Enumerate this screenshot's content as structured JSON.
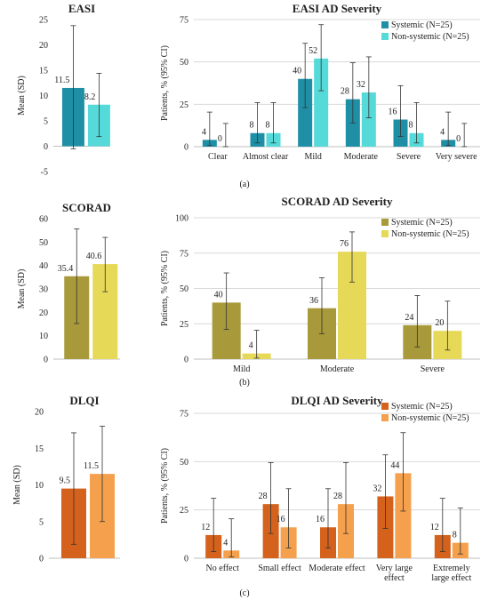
{
  "panel_labels": [
    "(a)",
    "(b)",
    "(c)"
  ],
  "colors": {
    "easi_systemic": "#1f8fa6",
    "easi_nonsystemic": "#56d9d9",
    "scorad_systemic": "#a89a3a",
    "scorad_nonsystemic": "#e6d957",
    "dlqi_systemic": "#d4621c",
    "dlqi_nonsystemic": "#f5a04d",
    "error_bar": "#333333",
    "gridline": "#d9d9d9"
  },
  "chart_data": [
    {
      "id": "easi-mean",
      "type": "bar",
      "title": "EASI",
      "ylabel": "Mean (SD)",
      "ylim": [
        -5,
        25
      ],
      "yticks": [
        -5,
        0,
        5,
        10,
        15,
        20,
        25
      ],
      "grid": false,
      "series": [
        {
          "values": [
            11.5
          ],
          "err_low": [
            -0.5
          ],
          "err_high": [
            23.8
          ],
          "color_key": "easi_systemic"
        },
        {
          "values": [
            8.2
          ],
          "err_low": [
            1.9
          ],
          "err_high": [
            14.4
          ],
          "color_key": "easi_nonsystemic"
        }
      ]
    },
    {
      "id": "easi-severity",
      "type": "bar",
      "title": "EASI AD Severity",
      "ylabel": "Patients, % (95% CI)",
      "ylim": [
        0,
        75
      ],
      "yticks": [
        0,
        25,
        50,
        75
      ],
      "grid": true,
      "legend": "top-right",
      "categories": [
        [
          "Clear"
        ],
        [
          "Almost clear"
        ],
        [
          "Mild"
        ],
        [
          "Moderate"
        ],
        [
          "Severe"
        ],
        [
          "Very severe"
        ]
      ],
      "series": [
        {
          "name": "Systemic (N=25)",
          "color_key": "easi_systemic",
          "values": [
            4,
            8,
            40,
            28,
            16,
            4
          ],
          "err_low": [
            0.7,
            2.2,
            23,
            14,
            6,
            0.7
          ],
          "err_high": [
            20.4,
            26,
            61,
            49.5,
            36,
            20.4
          ]
        },
        {
          "name": "Non-systemic (N=25)",
          "color_key": "easi_nonsystemic",
          "values": [
            0,
            8,
            52,
            32,
            8,
            0
          ],
          "err_low": [
            0,
            2.2,
            33,
            17,
            2.2,
            0
          ],
          "err_high": [
            13.7,
            26,
            72,
            53,
            26,
            13.7
          ]
        }
      ]
    },
    {
      "id": "scorad-mean",
      "type": "bar",
      "title": "SCORAD",
      "ylabel": "Mean (SD)",
      "ylim": [
        0,
        60
      ],
      "yticks": [
        0,
        10,
        20,
        30,
        40,
        50,
        60
      ],
      "grid": false,
      "series": [
        {
          "values": [
            35.4
          ],
          "err_low": [
            15.2
          ],
          "err_high": [
            55.6
          ],
          "color_key": "scorad_systemic"
        },
        {
          "values": [
            40.6
          ],
          "err_low": [
            28.8
          ],
          "err_high": [
            52
          ],
          "color_key": "scorad_nonsystemic"
        }
      ]
    },
    {
      "id": "scorad-severity",
      "type": "bar",
      "title": "SCORAD AD Severity",
      "ylabel": "Patients, % (95% CI)",
      "ylim": [
        0,
        100
      ],
      "yticks": [
        0,
        25,
        50,
        75,
        100
      ],
      "grid": true,
      "legend": "top-right",
      "categories": [
        [
          "Mild"
        ],
        [
          "Moderate"
        ],
        [
          "Severe"
        ]
      ],
      "series": [
        {
          "name": "Systemic (N=25)",
          "color_key": "scorad_systemic",
          "values": [
            40,
            36,
            24
          ],
          "err_low": [
            21,
            18,
            8.6
          ],
          "err_high": [
            61,
            57.5,
            45
          ]
        },
        {
          "name": "Non-systemic (N=25)",
          "color_key": "scorad_nonsystemic",
          "values": [
            4,
            76,
            20
          ],
          "err_low": [
            0.7,
            54.5,
            6.4
          ],
          "err_high": [
            20.4,
            90,
            41
          ]
        }
      ]
    },
    {
      "id": "dlqi-mean",
      "type": "bar",
      "title": "DLQI",
      "ylabel": "Mean (SD)",
      "ylim": [
        0,
        20
      ],
      "yticks": [
        0,
        5,
        10,
        15,
        20
      ],
      "grid": false,
      "series": [
        {
          "values": [
            9.5
          ],
          "err_low": [
            1.9
          ],
          "err_high": [
            17.1
          ],
          "color_key": "dlqi_systemic"
        },
        {
          "values": [
            11.5
          ],
          "err_low": [
            5
          ],
          "err_high": [
            18
          ],
          "color_key": "dlqi_nonsystemic"
        }
      ]
    },
    {
      "id": "dlqi-severity",
      "type": "bar",
      "title": "DLQI AD Severity",
      "ylabel": "Patients, % (95% CI)",
      "ylim": [
        0,
        75
      ],
      "yticks": [
        0,
        25,
        50,
        75
      ],
      "grid": true,
      "legend": "top-right",
      "categories": [
        [
          "No effect"
        ],
        [
          "Small effect"
        ],
        [
          "Moderate effect"
        ],
        [
          "Very large",
          "effect"
        ],
        [
          "Extremely",
          "large effect"
        ]
      ],
      "series": [
        {
          "name": "Systemic (N=25)",
          "color_key": "dlqi_systemic",
          "values": [
            12,
            28,
            16,
            32,
            12
          ],
          "err_low": [
            3.4,
            12.8,
            5.3,
            15.4,
            3.4
          ],
          "err_high": [
            31,
            49.5,
            36,
            53.5,
            31
          ]
        },
        {
          "name": "Non-systemic (N=25)",
          "color_key": "dlqi_nonsystemic",
          "values": [
            4,
            16,
            28,
            44,
            8
          ],
          "err_low": [
            0.7,
            5.3,
            12.8,
            24.4,
            2.2
          ],
          "err_high": [
            20.4,
            36,
            49.5,
            65,
            26
          ]
        }
      ]
    }
  ]
}
